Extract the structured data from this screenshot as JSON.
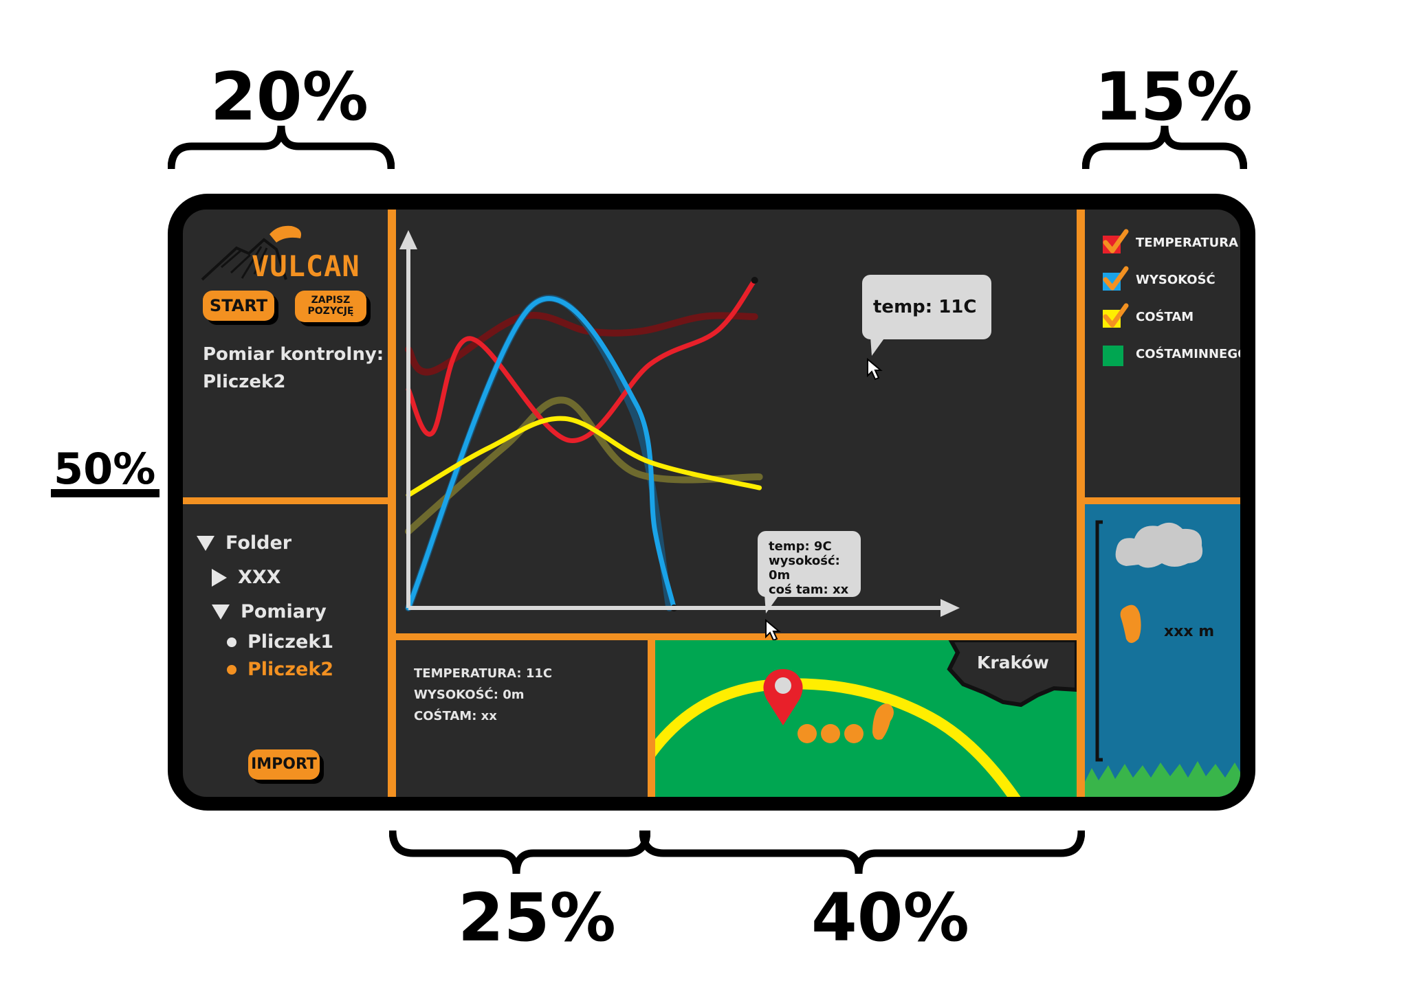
{
  "annotations": {
    "left_width": "20%",
    "right_width": "15%",
    "left_height": "50%",
    "bottom_info_width": "25%",
    "bottom_map_width": "40%"
  },
  "app": {
    "logo_text": "VULCAN",
    "start_label": "START",
    "save_position_label_line1": "ZAPISZ",
    "save_position_label_line2": "POZYCJĘ",
    "measurement_title": "Pomiar kontrolny:",
    "measurement_value": "Pliczek2",
    "import_label": "IMPORT"
  },
  "tree": {
    "items": [
      {
        "label": "Folder",
        "state": "expanded"
      },
      {
        "label": "XXX",
        "state": "collapsed"
      },
      {
        "label": "Pomiary",
        "state": "expanded"
      },
      {
        "label": "Pliczek1",
        "state": "file"
      },
      {
        "label": "Pliczek2",
        "state": "file-selected"
      }
    ]
  },
  "legend": {
    "items": [
      {
        "label": "TEMPERATURA",
        "color": "#e8202a",
        "checked": true
      },
      {
        "label": "WYSOKOŚĆ",
        "color": "#1aa3e8",
        "checked": true
      },
      {
        "label": "COŚTAM",
        "color": "#ffee00",
        "checked": true
      },
      {
        "label": "COŚTAMINNEGO",
        "color": "#00a651",
        "checked": false
      }
    ]
  },
  "chart": {
    "tooltip_top": "temp: 11C",
    "tooltip_bottom_line1": "temp: 9C",
    "tooltip_bottom_line2": "wysokość: 0m",
    "tooltip_bottom_line3": "coś tam: xx"
  },
  "chart_data": {
    "type": "line",
    "xlabel": "",
    "ylabel": "",
    "grid": false,
    "series": [
      {
        "name": "TEMPERATURA",
        "color": "#e8202a",
        "x": [
          0,
          0.05,
          0.13,
          0.34,
          0.51,
          0.65,
          0.73
        ],
        "y": [
          0.6,
          0.48,
          0.74,
          0.46,
          0.67,
          0.76,
          0.9
        ]
      },
      {
        "name": "WYSOKOŚĆ",
        "color": "#1aa3e8",
        "x": [
          0,
          0.26,
          0.48,
          0.52,
          0.56
        ],
        "y": [
          0,
          0.83,
          0.56,
          0.21,
          0
        ]
      },
      {
        "name": "COŚTAM",
        "color": "#ffee00",
        "x": [
          0,
          0.17,
          0.33,
          0.51,
          0.74
        ],
        "y": [
          0.31,
          0.44,
          0.52,
          0.4,
          0.33
        ]
      }
    ],
    "shadow_series": [
      {
        "color": "#6e1416",
        "x": [
          0,
          0.05,
          0.24,
          0.38,
          0.49,
          0.62,
          0.73
        ],
        "y": [
          0.71,
          0.65,
          0.8,
          0.76,
          0.76,
          0.8,
          0.8
        ]
      },
      {
        "color": "#1c4e6d",
        "x": [
          0,
          0.26,
          0.47,
          0.55
        ],
        "y": [
          0,
          0.83,
          0.55,
          0
        ]
      },
      {
        "color": "#6e6a2e",
        "x": [
          0,
          0.2,
          0.33,
          0.48,
          0.74
        ],
        "y": [
          0.21,
          0.44,
          0.57,
          0.37,
          0.36
        ]
      }
    ]
  },
  "info_panel": {
    "line1": "TEMPERATURA: 11C",
    "line2": "WYSOKOŚĆ: 0m",
    "line3": "COŚTAM: xx"
  },
  "map": {
    "city_label": "Kraków"
  },
  "altitude": {
    "label": "xxx m"
  }
}
